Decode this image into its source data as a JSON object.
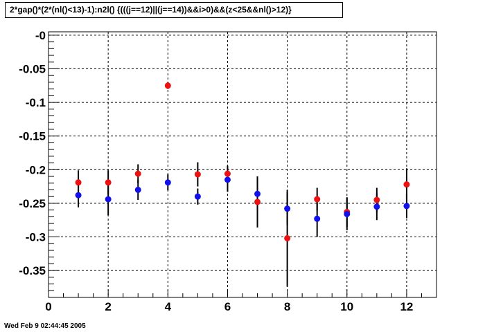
{
  "title": "2*gap()*(2*(nl()<13)-1):n2l() {(((j==12)||(j==14))&&i>0)&&(z<25&&nl()>12)}",
  "footer_timestamp": "Wed Feb  9 02:44:45 2005",
  "chart_data": {
    "type": "scatter",
    "title": "2*gap()*(2*(nl()<13)-1):n2l() {(((j==12)||(j==14))&&i>0)&&(z<25&&nl()>12)}",
    "xlabel": "",
    "ylabel": "",
    "xlim": [
      0,
      13
    ],
    "ylim": [
      -0.39,
      0.005
    ],
    "grid": true,
    "x_ticks": [
      0,
      2,
      4,
      6,
      8,
      10,
      12
    ],
    "y_ticks": [
      0,
      -0.05,
      -0.1,
      -0.15,
      -0.2,
      -0.25,
      -0.3,
      -0.35
    ],
    "y_tick_labels": [
      "-0",
      "-0.05",
      "-0.1",
      "-0.15",
      "-0.2",
      "-0.25",
      "-0.3",
      "-0.35"
    ],
    "series": [
      {
        "color": "#ee1111",
        "points": [
          {
            "x": 1,
            "y": -0.219,
            "err": 0.018
          },
          {
            "x": 2,
            "y": -0.219,
            "err": 0.018
          },
          {
            "x": 3,
            "y": -0.206,
            "err": 0.014
          },
          {
            "x": 4,
            "y": -0.075,
            "err": 0.005
          },
          {
            "x": 5,
            "y": -0.207,
            "err": 0.018
          },
          {
            "x": 6,
            "y": -0.206,
            "err": 0.012
          },
          {
            "x": 7,
            "y": -0.248,
            "err": 0.038
          },
          {
            "x": 8,
            "y": -0.302,
            "err": 0.072
          },
          {
            "x": 9,
            "y": -0.244,
            "err": 0.017
          },
          {
            "x": 10,
            "y": -0.263,
            "err": 0.022
          },
          {
            "x": 11,
            "y": -0.245,
            "err": 0.018
          },
          {
            "x": 12,
            "y": -0.222,
            "err": 0.024
          }
        ]
      },
      {
        "color": "#1111ee",
        "points": [
          {
            "x": 1,
            "y": -0.238,
            "err": 0.018
          },
          {
            "x": 2,
            "y": -0.244,
            "err": 0.024
          },
          {
            "x": 3,
            "y": -0.23,
            "err": 0.015
          },
          {
            "x": 4,
            "y": -0.219,
            "err": 0.012
          },
          {
            "x": 5,
            "y": -0.24,
            "err": 0.012
          },
          {
            "x": 6,
            "y": -0.215,
            "err": 0.018
          },
          {
            "x": 7,
            "y": -0.236,
            "err": 0.024
          },
          {
            "x": 8,
            "y": -0.258,
            "err": 0.025
          },
          {
            "x": 9,
            "y": -0.273,
            "err": 0.027
          },
          {
            "x": 10,
            "y": -0.266,
            "err": 0.024
          },
          {
            "x": 11,
            "y": -0.255,
            "err": 0.02
          },
          {
            "x": 12,
            "y": -0.254,
            "err": 0.018
          }
        ]
      }
    ]
  }
}
